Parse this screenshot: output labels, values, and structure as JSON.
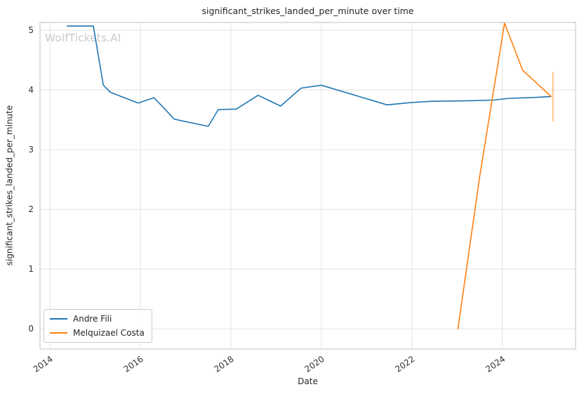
{
  "chart_data": {
    "type": "line",
    "title": "significant_strikes_landed_per_minute over time",
    "xlabel": "Date",
    "ylabel": "significant_strikes_landed_per_minute",
    "watermark": "WolfTickets.AI",
    "xlim": [
      2013.78,
      2025.62
    ],
    "ylim": [
      -0.34,
      5.13
    ],
    "xticks": [
      2014,
      2016,
      2018,
      2020,
      2022,
      2024
    ],
    "yticks": [
      0,
      1,
      2,
      3,
      4,
      5
    ],
    "grid": true,
    "grid_color": "#e3e3e3",
    "spine_color": "#cccccc",
    "legend_position": "lower left",
    "series": [
      {
        "name": "Andre Fili",
        "color": "#1f77b4",
        "points": [
          [
            2014.38,
            5.07
          ],
          [
            2014.96,
            5.07
          ],
          [
            2015.18,
            4.08
          ],
          [
            2015.34,
            3.96
          ],
          [
            2015.95,
            3.78
          ],
          [
            2016.3,
            3.87
          ],
          [
            2016.75,
            3.51
          ],
          [
            2017.5,
            3.39
          ],
          [
            2017.72,
            3.67
          ],
          [
            2018.12,
            3.68
          ],
          [
            2018.6,
            3.91
          ],
          [
            2019.1,
            3.73
          ],
          [
            2019.55,
            4.03
          ],
          [
            2020.0,
            4.08
          ],
          [
            2021.45,
            3.75
          ],
          [
            2022.0,
            3.79
          ],
          [
            2022.45,
            3.81
          ],
          [
            2023.3,
            3.82
          ],
          [
            2023.8,
            3.83
          ],
          [
            2024.15,
            3.86
          ],
          [
            2024.6,
            3.87
          ],
          [
            2025.08,
            3.89
          ]
        ]
      },
      {
        "name": "Melquizael Costa",
        "color": "#ff7f0e",
        "points": [
          [
            2023.02,
            0.0
          ],
          [
            2023.5,
            2.55
          ],
          [
            2024.05,
            5.12
          ],
          [
            2024.45,
            4.33
          ],
          [
            2025.08,
            3.89
          ]
        ]
      }
    ],
    "error_bar": {
      "x": 2025.12,
      "y_low": 3.47,
      "y_high": 4.3,
      "color": "#ffb878"
    }
  }
}
